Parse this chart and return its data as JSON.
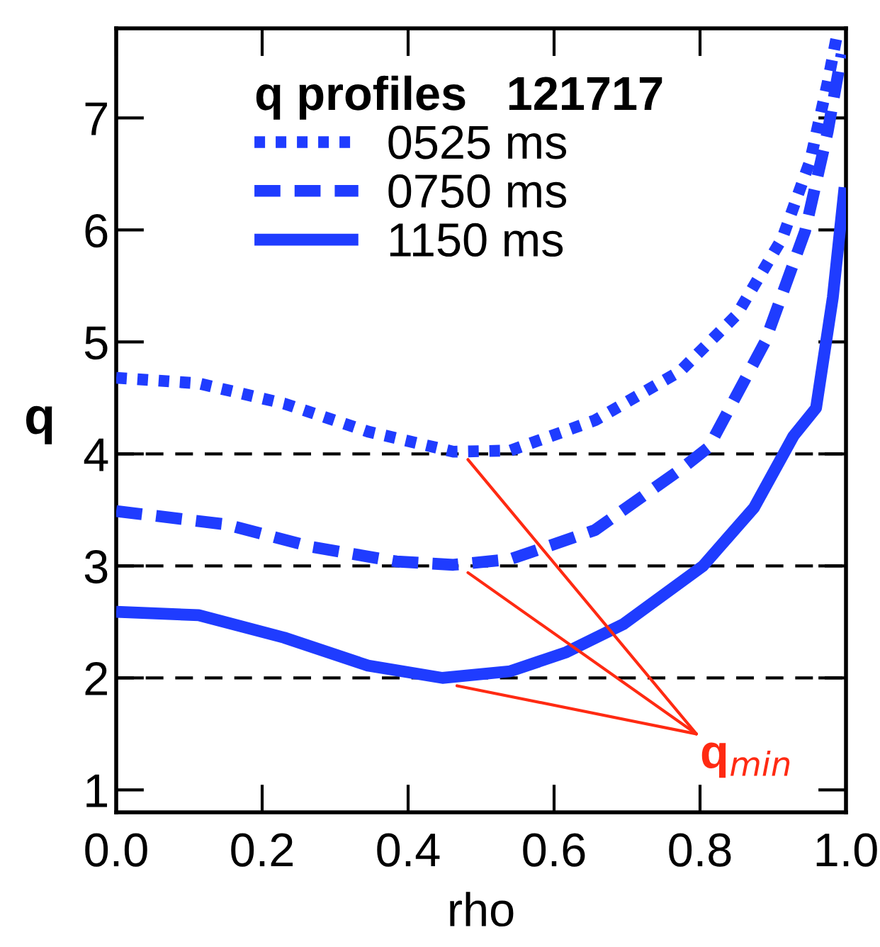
{
  "chart_data": {
    "type": "line",
    "legend_title": "q profiles   121717",
    "xlabel": "rho",
    "ylabel": "q",
    "xlim": [
      0.0,
      1.0
    ],
    "xticks": [
      {
        "value": 0.0,
        "label": "0.0"
      },
      0.2,
      0.4,
      0.6,
      0.8,
      {
        "value": 1.0,
        "label": "1.0"
      }
    ],
    "ylim": [
      0.8,
      7.8
    ],
    "yticks": [
      1,
      2,
      3,
      4,
      5,
      6,
      7
    ],
    "grid": false,
    "legend": "top",
    "marker": "none",
    "ref_lines": [
      {
        "axis": "y",
        "value": 2,
        "color": "#000000",
        "line_style": "dashed"
      },
      {
        "axis": "y",
        "value": 3,
        "color": "#000000",
        "line_style": "dashed"
      },
      {
        "axis": "y",
        "value": 4,
        "color": "#000000",
        "line_style": "dashed"
      }
    ],
    "annotations": [
      "q$_{min}$"
    ],
    "series": [
      {
        "name": "0525 ms",
        "color": "#1f3cff",
        "line_style": "dotted",
        "x": [
          0.0,
          0.113,
          0.23,
          0.345,
          0.462,
          0.54,
          0.656,
          0.773,
          0.85,
          0.913,
          0.951,
          0.975,
          0.988
        ],
        "values": [
          4.68,
          4.63,
          4.45,
          4.2,
          4.02,
          4.03,
          4.3,
          4.74,
          5.24,
          5.93,
          6.62,
          7.32,
          7.75
        ]
      },
      {
        "name": "0750 ms",
        "color": "#1f3cff",
        "line_style": "dashed",
        "x": [
          0.0,
          0.151,
          0.268,
          0.384,
          0.462,
          0.54,
          0.656,
          0.773,
          0.812,
          0.889,
          0.944,
          0.975,
          0.994
        ],
        "values": [
          3.49,
          3.37,
          3.17,
          3.04,
          3.01,
          3.06,
          3.32,
          3.86,
          4.06,
          5.0,
          5.99,
          6.88,
          7.57
        ]
      },
      {
        "name": "1150 ms",
        "color": "#1f3cff",
        "line_style": "solid",
        "x": [
          0.0,
          0.113,
          0.23,
          0.345,
          0.447,
          0.54,
          0.617,
          0.695,
          0.804,
          0.874,
          0.928,
          0.959,
          0.982,
          0.998
        ],
        "values": [
          2.59,
          2.56,
          2.36,
          2.11,
          2.0,
          2.06,
          2.23,
          2.48,
          3.0,
          3.52,
          4.16,
          4.41,
          5.4,
          6.38
        ]
      }
    ]
  }
}
